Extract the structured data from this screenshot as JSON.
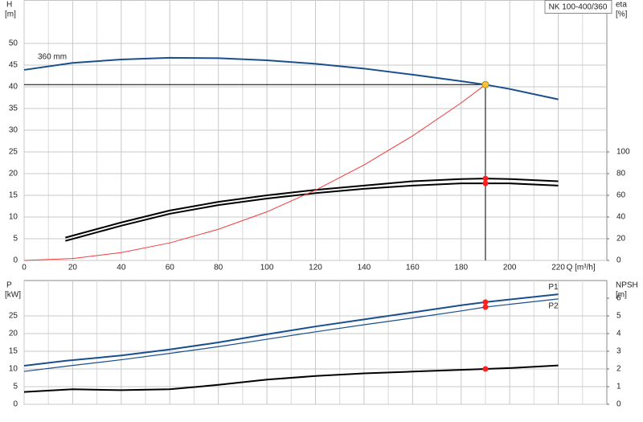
{
  "chart_data": [
    {
      "type": "line",
      "ylabel": "H",
      "yunit": "[m]",
      "y2label": "eta",
      "y2unit": "[%]",
      "xlabel": "Q [m³/h]",
      "legend": "NK 100-400/360",
      "xlim": [
        0,
        240
      ],
      "xticks": [
        0,
        20,
        40,
        60,
        80,
        100,
        120,
        140,
        160,
        180,
        200,
        220
      ],
      "ylim": [
        0,
        60
      ],
      "yticks": [
        0,
        5,
        10,
        15,
        20,
        25,
        30,
        35,
        40,
        45,
        50
      ],
      "y2lim": [
        0,
        240
      ],
      "y2ticks": [
        0,
        20,
        40,
        60,
        80,
        100
      ],
      "grid": true,
      "show_xtick_labels": true,
      "series": [
        {
          "name": "360 mm",
          "color": "#1a4f8b",
          "width": 2,
          "x": [
            0,
            20,
            40,
            60,
            80,
            100,
            120,
            140,
            160,
            180,
            190,
            200,
            220
          ],
          "values": [
            43.9,
            45.5,
            46.3,
            46.7,
            46.6,
            46.1,
            45.3,
            44.2,
            42.8,
            41.3,
            40.5,
            39.5,
            37.1
          ]
        },
        {
          "color": "#000000",
          "width": 2,
          "axis": "y2",
          "x": [
            17,
            40,
            60,
            80,
            100,
            120,
            140,
            160,
            180,
            190,
            200,
            220
          ],
          "values": [
            21,
            35,
            46,
            54,
            60,
            65,
            69,
            73,
            75,
            75.5,
            75,
            73
          ]
        },
        {
          "color": "#000000",
          "width": 2,
          "axis": "y2",
          "x": [
            17,
            40,
            60,
            80,
            100,
            120,
            140,
            160,
            180,
            190,
            200,
            220
          ],
          "values": [
            18,
            32,
            43,
            51,
            57,
            62,
            66,
            69,
            71,
            71,
            71,
            69
          ]
        },
        {
          "color": "#f03c3c",
          "width": 1,
          "x": [
            0,
            20,
            40,
            60,
            80,
            100,
            120,
            140,
            160,
            180,
            190
          ],
          "values": [
            0,
            0.45,
            1.8,
            4.04,
            7.18,
            11.2,
            16.2,
            22.0,
            28.7,
            36.3,
            40.5
          ]
        }
      ],
      "points": [
        {
          "x": 190,
          "y": 75.5,
          "axis": "y2",
          "color": "#ff2020"
        },
        {
          "x": 190,
          "y": 71,
          "axis": "y2",
          "color": "#ff2020"
        }
      ],
      "operating_point": {
        "x": 190,
        "y": 40.5,
        "color": "#f5c542"
      }
    },
    {
      "type": "line",
      "ylabel": "P",
      "yunit": "[kW]",
      "y2label": "NPSH",
      "y2unit": "[m]",
      "xlim": [
        0,
        240
      ],
      "xticks": [
        0,
        20,
        40,
        60,
        80,
        100,
        120,
        140,
        160,
        180,
        200,
        220
      ],
      "ylim": [
        0,
        35
      ],
      "yticks": [
        0,
        5,
        10,
        15,
        20,
        25
      ],
      "y2lim": [
        0,
        7
      ],
      "y2ticks": [
        0,
        1,
        2,
        3,
        4,
        5,
        6
      ],
      "grid": true,
      "show_xtick_labels": false,
      "series": [
        {
          "name": "P1",
          "color": "#1a4f8b",
          "width": 2,
          "x": [
            0,
            17,
            40,
            60,
            80,
            100,
            120,
            140,
            160,
            180,
            190,
            220
          ],
          "values": [
            10.9,
            12.3,
            13.8,
            15.5,
            17.5,
            19.8,
            22.0,
            24.0,
            26.0,
            28.0,
            28.9,
            31.1
          ]
        },
        {
          "name": "P2",
          "color": "#1a4f8b",
          "width": 1.2,
          "x": [
            0,
            20,
            40,
            60,
            80,
            100,
            120,
            140,
            160,
            180,
            190,
            220
          ],
          "values": [
            9.3,
            11.0,
            12.6,
            14.4,
            16.3,
            18.4,
            20.5,
            22.5,
            24.4,
            26.4,
            27.5,
            29.8
          ]
        },
        {
          "color": "#000000",
          "width": 2,
          "axis": "y2",
          "x": [
            0,
            20,
            40,
            60,
            80,
            100,
            120,
            140,
            160,
            180,
            190,
            200,
            220
          ],
          "values": [
            0.7,
            0.85,
            0.8,
            0.85,
            1.1,
            1.4,
            1.6,
            1.75,
            1.85,
            1.95,
            2.0,
            2.05,
            2.2
          ]
        }
      ],
      "points": [
        {
          "x": 190,
          "y": 28.9,
          "color": "#ff2020"
        },
        {
          "x": 190,
          "y": 27.5,
          "color": "#ff2020"
        },
        {
          "x": 190,
          "y": 2.0,
          "axis": "y2",
          "color": "#ff2020"
        }
      ]
    }
  ]
}
